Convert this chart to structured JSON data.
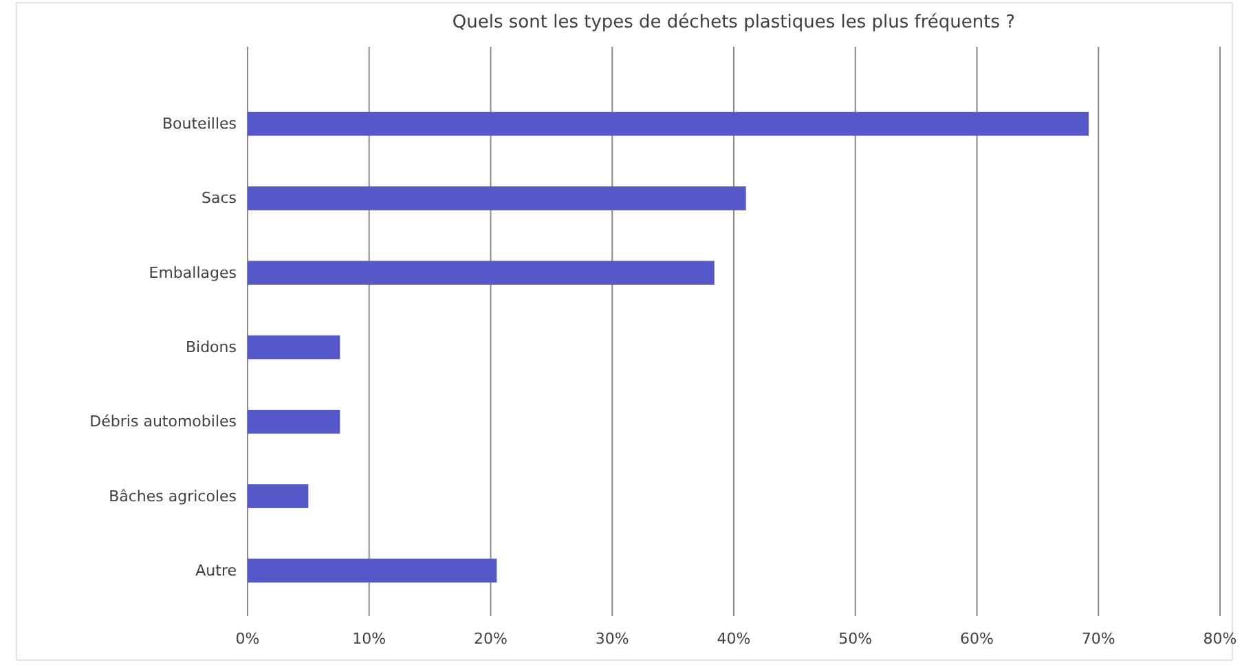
{
  "chart_data": {
    "type": "bar",
    "orientation": "horizontal",
    "title": "Quels sont les types de déchets plastiques les plus fréquents ?",
    "categories": [
      "Bouteilles",
      "Sacs",
      "Emballages",
      "Bidons",
      "Débris automobiles",
      "Bâches agricoles",
      "Autre"
    ],
    "values": [
      69.2,
      41.0,
      38.4,
      7.6,
      7.6,
      5.0,
      20.5
    ],
    "color": "#5558c8",
    "xlim": [
      0,
      80
    ],
    "xticks": [
      {
        "value": 0,
        "label": "0%"
      },
      {
        "value": 10,
        "label": "10%"
      },
      {
        "value": 20,
        "label": "20%"
      },
      {
        "value": 30,
        "label": "30%"
      },
      {
        "value": 40,
        "label": "40%"
      },
      {
        "value": 50,
        "label": "50%"
      },
      {
        "value": 60,
        "label": "60%"
      },
      {
        "value": 70,
        "label": "70%"
      },
      {
        "value": 80,
        "label": "80%"
      }
    ],
    "grid": "x"
  }
}
